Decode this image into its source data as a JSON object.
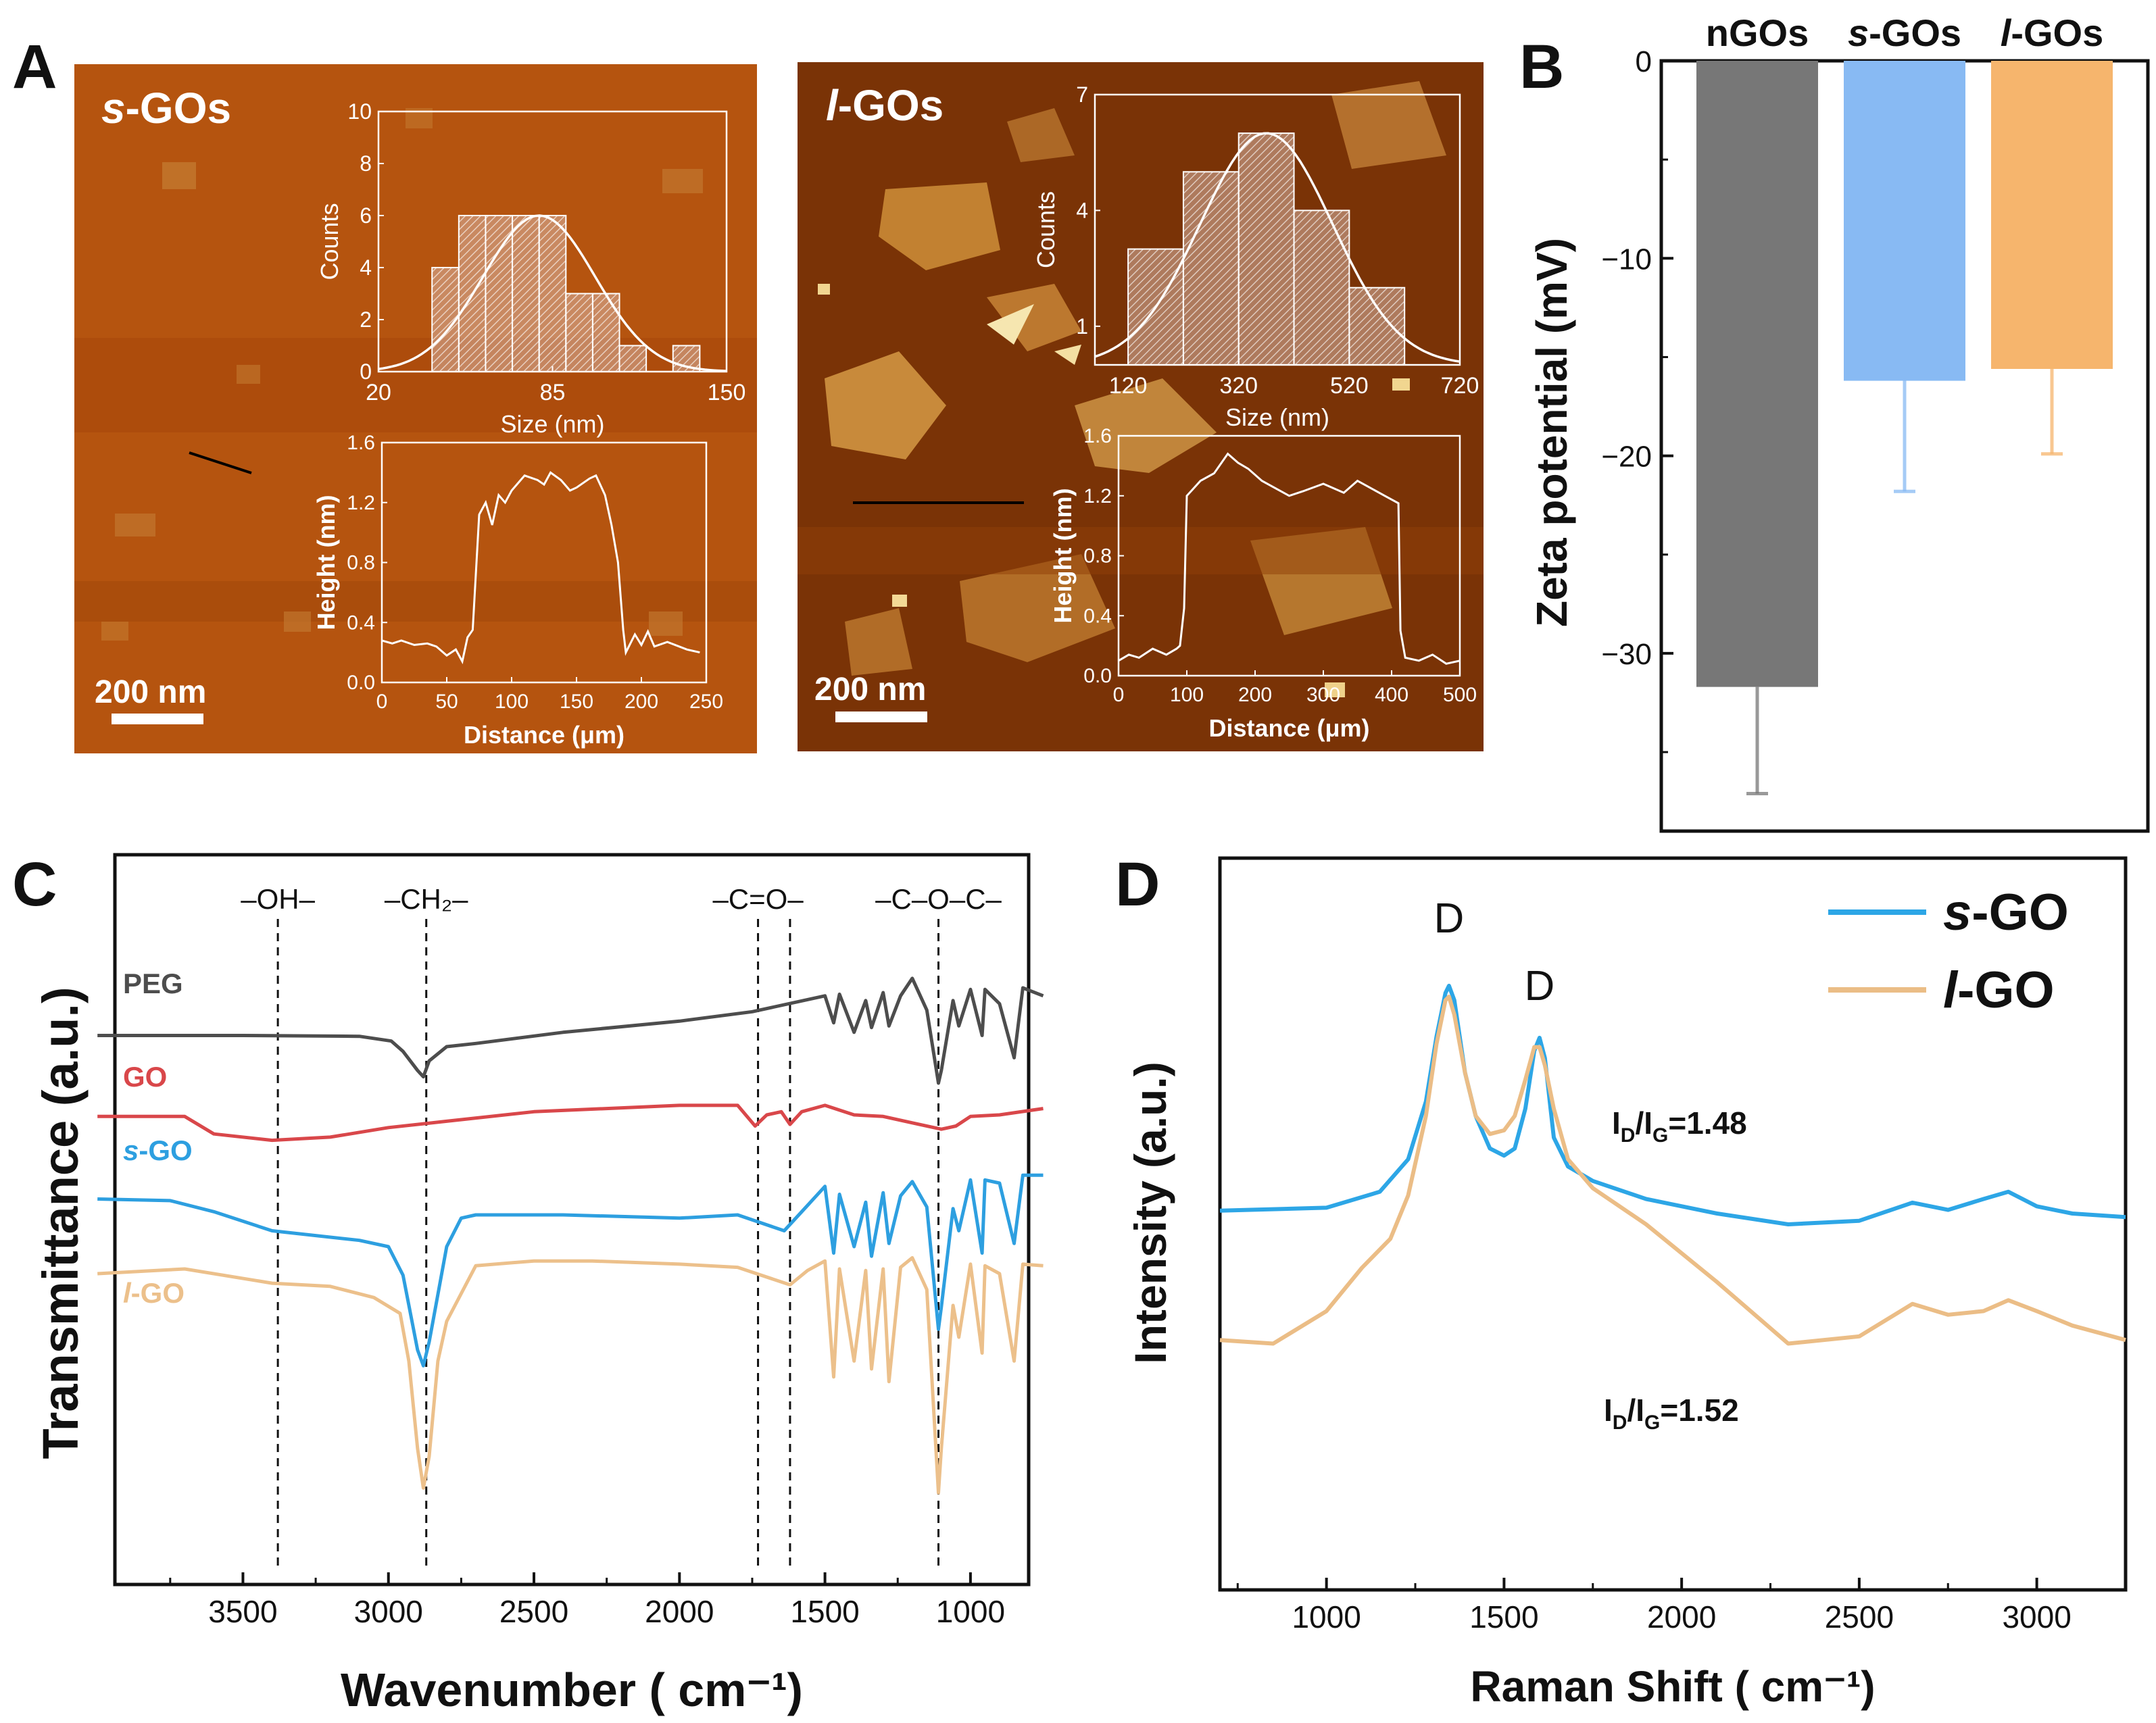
{
  "panels": {
    "a": "A",
    "b": "B",
    "c": "C",
    "d": "D"
  },
  "colors": {
    "afm_dark": "#8a3c08",
    "afm_mid": "#b2560f",
    "afm_flake": "#cf8d34",
    "afm_bright": "#f3dc98",
    "ngos": "#777777",
    "sgos": "#88baf3",
    "lgos": "#f6b56d",
    "peg": "#4d4d4d",
    "go": "#d9474a",
    "sgo": "#2d9fe0",
    "lgo": "#ecc08b",
    "raman_s": "#2da6e6",
    "raman_l": "#ebbd86"
  },
  "chart_data": [
    {
      "id": "A1",
      "type": "image-with-insets",
      "title": "s-GOs",
      "title_prefix": "s",
      "title_suffix": "-GOs",
      "scale_bar": "200 nm",
      "histogram": {
        "type": "histogram",
        "xlabel": "Size (nm)",
        "ylabel": "Counts",
        "xlim": [
          20,
          150
        ],
        "ylim": [
          0,
          10
        ],
        "xticks": [
          "20",
          "85",
          "150"
        ],
        "yticks": [
          "0",
          "2",
          "4",
          "6",
          "8",
          "10"
        ],
        "bins": [
          [
            40,
            50,
            4
          ],
          [
            50,
            60,
            6
          ],
          [
            60,
            70,
            6
          ],
          [
            70,
            80,
            6
          ],
          [
            80,
            90,
            6
          ],
          [
            90,
            100,
            3
          ],
          [
            100,
            110,
            3
          ],
          [
            110,
            120,
            1
          ],
          [
            130,
            140,
            1
          ]
        ],
        "fit": {
          "mean": 80,
          "sd": 21,
          "peak": 6
        }
      },
      "profile": {
        "type": "line",
        "xlabel": "Distance (μm)",
        "ylabel": "Height (nm)",
        "xlim": [
          0,
          250
        ],
        "ylim": [
          0,
          1.6
        ],
        "xticks": [
          "0",
          "50",
          "100",
          "150",
          "200",
          "250"
        ],
        "yticks": [
          "0.0",
          "0.4",
          "0.8",
          "1.2",
          "1.6"
        ],
        "x": [
          0,
          8,
          15,
          25,
          35,
          42,
          50,
          57,
          62,
          66,
          70,
          75,
          80,
          85,
          90,
          95,
          100,
          110,
          120,
          125,
          130,
          138,
          145,
          150,
          160,
          165,
          172,
          177,
          182,
          186,
          188,
          195,
          200,
          205,
          210,
          220,
          235,
          245
        ],
        "y": [
          0.28,
          0.26,
          0.28,
          0.25,
          0.26,
          0.24,
          0.18,
          0.22,
          0.14,
          0.3,
          0.35,
          1.12,
          1.2,
          1.05,
          1.25,
          1.2,
          1.28,
          1.38,
          1.35,
          1.32,
          1.4,
          1.35,
          1.28,
          1.3,
          1.36,
          1.38,
          1.25,
          1.05,
          0.8,
          0.35,
          0.2,
          0.32,
          0.25,
          0.34,
          0.24,
          0.27,
          0.22,
          0.2
        ]
      }
    },
    {
      "id": "A2",
      "type": "image-with-insets",
      "title": "l-GOs",
      "title_prefix": "l",
      "title_suffix": "-GOs",
      "scale_bar": "200 nm",
      "histogram": {
        "type": "histogram",
        "xlabel": "Size (nm)",
        "ylabel": "Counts",
        "xlim": [
          60,
          720
        ],
        "ylim": [
          0,
          7
        ],
        "xticks": [
          "120",
          "320",
          "520",
          "720"
        ],
        "yticks": [
          "1",
          "4",
          "7"
        ],
        "bins": [
          [
            120,
            220,
            3
          ],
          [
            220,
            320,
            5
          ],
          [
            320,
            420,
            6
          ],
          [
            420,
            520,
            4
          ],
          [
            520,
            620,
            2
          ]
        ],
        "fit": {
          "mean": 370,
          "sd": 120,
          "peak": 6
        }
      },
      "profile": {
        "type": "line",
        "xlabel": "Distance (μm)",
        "ylabel": "Height (nm)",
        "xlim": [
          0,
          500
        ],
        "ylim": [
          0,
          1.6
        ],
        "xticks": [
          "0",
          "100",
          "200",
          "300",
          "400",
          "500"
        ],
        "yticks": [
          "0.0",
          "0.4",
          "0.8",
          "1.2",
          "1.6"
        ],
        "x": [
          0,
          15,
          30,
          50,
          70,
          85,
          90,
          96,
          100,
          110,
          120,
          140,
          160,
          175,
          190,
          210,
          230,
          250,
          270,
          300,
          330,
          350,
          370,
          390,
          410,
          413,
          420,
          440,
          460,
          480,
          500
        ],
        "y": [
          0.1,
          0.14,
          0.12,
          0.18,
          0.14,
          0.18,
          0.2,
          0.45,
          1.2,
          1.25,
          1.3,
          1.35,
          1.48,
          1.42,
          1.38,
          1.3,
          1.25,
          1.2,
          1.23,
          1.28,
          1.22,
          1.3,
          1.25,
          1.2,
          1.15,
          0.3,
          0.12,
          0.1,
          0.14,
          0.08,
          0.1
        ]
      }
    },
    {
      "id": "B",
      "type": "bar",
      "title": "",
      "ylabel": "Zeta potential (mV)",
      "ylim": [
        -39,
        0
      ],
      "yticks": [
        "0",
        "−10",
        "−20",
        "−30"
      ],
      "categories": [
        "nGOs",
        "s-GOs",
        "l-GOs"
      ],
      "category_parts": [
        [
          "",
          "nGOs"
        ],
        [
          "s",
          "-GOs"
        ],
        [
          "l",
          "-GOs"
        ]
      ],
      "values": [
        -31.7,
        -16.2,
        -15.6
      ],
      "errors": [
        5.4,
        5.6,
        4.3
      ]
    },
    {
      "id": "C",
      "type": "line",
      "xlabel": "Wavenumber ( cm⁻¹)",
      "ylabel": "Transmittance (a.u.)",
      "xlim": [
        4000,
        750
      ],
      "xticks": [
        "3500",
        "3000",
        "2500",
        "2000",
        "1500",
        "1000"
      ],
      "annotations": [
        "–OH–",
        "–CH₂–",
        "–C=O–",
        "–C–O–C–"
      ],
      "annotation_positions_cm": [
        3380,
        2870,
        1730,
        1110
      ],
      "dashed_lines_cm": [
        3380,
        2870,
        1730,
        1620,
        1110
      ],
      "series": [
        {
          "name": "PEG",
          "label_prefix": "",
          "label_suffix": "PEG",
          "offset": 0,
          "x": [
            4000,
            3500,
            3100,
            2990,
            2950,
            2900,
            2880,
            2860,
            2800,
            2700,
            2400,
            2000,
            1750,
            1500,
            1470,
            1450,
            1400,
            1360,
            1340,
            1300,
            1280,
            1240,
            1200,
            1150,
            1110,
            1100,
            1060,
            1040,
            1000,
            960,
            950,
            900,
            850,
            820,
            750
          ],
          "y": [
            1.0,
            1.0,
            1.05,
            1.35,
            2.0,
            3.2,
            3.6,
            2.6,
            1.7,
            1.5,
            0.8,
            0.1,
            -0.5,
            -1.5,
            0.2,
            -1.6,
            0.8,
            -1.2,
            0.5,
            -1.7,
            0.4,
            -1.5,
            -2.6,
            -0.6,
            4.0,
            3.2,
            -1.2,
            0.4,
            -1.9,
            1.0,
            -1.9,
            -1.0,
            2.4,
            -2.0,
            -1.5
          ]
        },
        {
          "name": "GO",
          "label_prefix": "",
          "label_suffix": "GO",
          "offset": 6.4,
          "x": [
            4000,
            3700,
            3600,
            3400,
            3200,
            3000,
            2800,
            2500,
            2000,
            1800,
            1740,
            1700,
            1650,
            1620,
            1580,
            1500,
            1400,
            1300,
            1200,
            1100,
            1050,
            1000,
            900,
            750
          ],
          "y": [
            -0.3,
            -0.3,
            0.8,
            1.2,
            1.0,
            0.4,
            0.0,
            -0.6,
            -1.0,
            -1.0,
            0.3,
            -0.4,
            -0.6,
            0.2,
            -0.6,
            -1.0,
            -0.4,
            -0.3,
            0.1,
            0.5,
            0.3,
            -0.3,
            -0.4,
            -0.8
          ]
        },
        {
          "name": "s-GO",
          "label_prefix": "s",
          "label_suffix": "-GO",
          "offset": 11.3,
          "x": [
            4000,
            3750,
            3600,
            3400,
            3100,
            3000,
            2950,
            2900,
            2880,
            2860,
            2800,
            2750,
            2700,
            2400,
            2000,
            1800,
            1640,
            1560,
            1500,
            1470,
            1450,
            1400,
            1360,
            1340,
            1300,
            1280,
            1240,
            1200,
            1150,
            1110,
            1100,
            1060,
            1040,
            1000,
            960,
            950,
            900,
            850,
            820,
            750
          ],
          "y": [
            0.0,
            0.1,
            0.8,
            2.0,
            2.6,
            3.0,
            4.8,
            9.5,
            10.5,
            9.0,
            3.0,
            1.2,
            1.0,
            1.0,
            1.2,
            1.0,
            2.0,
            0.4,
            -0.8,
            3.4,
            -0.3,
            3.0,
            0.2,
            3.6,
            -0.4,
            2.8,
            -0.2,
            -1.1,
            0.5,
            8.2,
            6.8,
            0.6,
            2.0,
            -1.2,
            3.4,
            -1.2,
            -1.0,
            2.8,
            -1.5,
            -1.5
          ]
        },
        {
          "name": "l-GO",
          "label_prefix": "l",
          "label_suffix": "-GO",
          "offset": 16.0,
          "x": [
            4000,
            3700,
            3400,
            3200,
            3050,
            2960,
            2930,
            2900,
            2880,
            2860,
            2830,
            2800,
            2700,
            2500,
            2300,
            2000,
            1800,
            1620,
            1560,
            1500,
            1470,
            1450,
            1400,
            1360,
            1340,
            1300,
            1280,
            1240,
            1200,
            1150,
            1110,
            1100,
            1060,
            1040,
            1000,
            960,
            950,
            900,
            850,
            820,
            750
          ],
          "y": [
            0.0,
            -0.3,
            0.6,
            0.8,
            1.5,
            2.5,
            5.5,
            11.0,
            13.5,
            11.5,
            5.5,
            3.0,
            -0.5,
            -0.8,
            -0.8,
            -0.6,
            -0.4,
            0.7,
            -0.2,
            -0.8,
            6.5,
            -0.3,
            5.5,
            -0.2,
            6.0,
            -0.3,
            6.8,
            -0.4,
            -1.0,
            1.0,
            13.8,
            11.0,
            2.0,
            4.0,
            -0.6,
            5.0,
            -0.5,
            0.0,
            5.5,
            -0.6,
            -0.5
          ]
        }
      ]
    },
    {
      "id": "D",
      "type": "line",
      "xlabel": "Raman Shift ( cm⁻¹)",
      "ylabel": "Intensity (a.u.)",
      "xlim": [
        700,
        3250
      ],
      "xticks": [
        "1000",
        "1500",
        "2000",
        "2500",
        "3000"
      ],
      "peak_labels": [
        "D",
        "D"
      ],
      "peak_label_positions_cm": [
        1345,
        1600
      ],
      "legend": [
        "s-GO",
        "l-GO"
      ],
      "ratios": [
        {
          "prefix": "I",
          "num_sub": "D",
          "mid": "/I",
          "den_sub": "G",
          "value": "=1.48"
        },
        {
          "prefix": "I",
          "num_sub": "D",
          "mid": "/I",
          "den_sub": "G",
          "value": "=1.52"
        }
      ],
      "series": [
        {
          "name": "s-GO",
          "label_prefix": "s",
          "label_suffix": "-GO",
          "x": [
            700,
            1000,
            1150,
            1230,
            1280,
            1310,
            1335,
            1345,
            1360,
            1390,
            1420,
            1460,
            1500,
            1530,
            1560,
            1585,
            1600,
            1615,
            1640,
            1680,
            1750,
            1900,
            2100,
            2300,
            2500,
            2650,
            2750,
            2850,
            2920,
            3000,
            3100,
            3250
          ],
          "y": [
            0.19,
            0.23,
            0.45,
            0.9,
            1.7,
            2.6,
            3.2,
            3.3,
            3.1,
            2.1,
            1.5,
            1.05,
            0.95,
            1.05,
            1.6,
            2.4,
            2.58,
            2.3,
            1.2,
            0.8,
            0.6,
            0.35,
            0.15,
            0.0,
            0.05,
            0.3,
            0.2,
            0.35,
            0.45,
            0.25,
            0.15,
            0.1
          ]
        },
        {
          "name": "l-GO",
          "label_prefix": "l",
          "label_suffix": "-GO",
          "x": [
            700,
            850,
            1000,
            1100,
            1180,
            1230,
            1280,
            1310,
            1335,
            1345,
            1360,
            1390,
            1420,
            1460,
            1500,
            1530,
            1560,
            1585,
            1600,
            1615,
            1640,
            1680,
            1750,
            1900,
            2100,
            2300,
            2500,
            2650,
            2750,
            2850,
            2920,
            3000,
            3100,
            3250
          ],
          "y": [
            -1.6,
            -1.65,
            -1.2,
            -0.6,
            -0.2,
            0.4,
            1.5,
            2.5,
            3.1,
            3.15,
            2.9,
            2.1,
            1.5,
            1.25,
            1.3,
            1.5,
            2.0,
            2.45,
            2.45,
            2.2,
            1.6,
            0.9,
            0.5,
            0.0,
            -0.8,
            -1.65,
            -1.55,
            -1.1,
            -1.25,
            -1.2,
            -1.05,
            -1.2,
            -1.4,
            -1.6
          ]
        }
      ]
    }
  ]
}
